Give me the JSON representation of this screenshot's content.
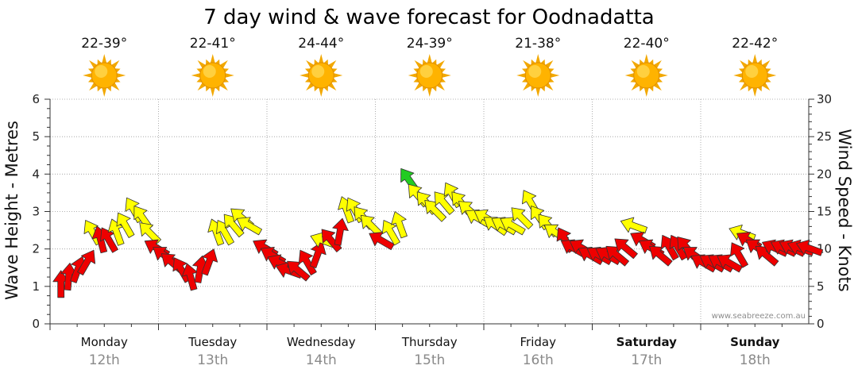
{
  "chart_data": {
    "type": "scatter",
    "title": "7 day wind & wave forecast for Oodnadatta",
    "y_left": {
      "label": "Wave Height - Metres",
      "ticks": [
        "0",
        "1",
        "2",
        "3",
        "4",
        "5",
        "6"
      ],
      "range": [
        0,
        6
      ]
    },
    "y_right": {
      "label": "Wind Speed - Knots",
      "ticks": [
        "0",
        "5",
        "10",
        "15",
        "20",
        "25",
        "30"
      ],
      "range": [
        0,
        30
      ]
    },
    "grid": true,
    "days": [
      {
        "name": "Monday",
        "date": "12th",
        "temp": "22-39°",
        "weather": "sunny-icon",
        "bold": false
      },
      {
        "name": "Tuesday",
        "date": "13th",
        "temp": "22-41°",
        "weather": "sunny-icon",
        "bold": false
      },
      {
        "name": "Wednesday",
        "date": "14th",
        "temp": "24-44°",
        "weather": "sunny-icon",
        "bold": false
      },
      {
        "name": "Thursday",
        "date": "15th",
        "temp": "24-39°",
        "weather": "sunny-icon",
        "bold": false
      },
      {
        "name": "Friday",
        "date": "16th",
        "temp": "21-38°",
        "weather": "sunny-icon",
        "bold": false
      },
      {
        "name": "Saturday",
        "date": "17th",
        "temp": "22-40°",
        "weather": "sunny-icon",
        "bold": true
      },
      {
        "name": "Sunday",
        "date": "18th",
        "temp": "22-42°",
        "weather": "sunny-icon",
        "bold": true
      }
    ],
    "wind_series": {
      "name": "Wind speed (knots) and direction (arrow bearing, degrees)",
      "x_unit": "days from Monday 00:00",
      "colors": {
        "strong": "#ee0000",
        "moderate": "#ffff00",
        "light": "#22cc22"
      },
      "points": [
        [
          0.1,
          5,
          0,
          "strong"
        ],
        [
          0.17,
          6,
          5,
          "strong"
        ],
        [
          0.25,
          7,
          20,
          "strong"
        ],
        [
          0.33,
          8,
          30,
          "strong"
        ],
        [
          0.4,
          12,
          330,
          "moderate"
        ],
        [
          0.47,
          11,
          345,
          "strong"
        ],
        [
          0.55,
          11,
          330,
          "strong"
        ],
        [
          0.62,
          12,
          340,
          "moderate"
        ],
        [
          0.7,
          13,
          330,
          "moderate"
        ],
        [
          0.78,
          15,
          330,
          "moderate"
        ],
        [
          0.86,
          14,
          325,
          "moderate"
        ],
        [
          0.93,
          12,
          315,
          "moderate"
        ],
        [
          1.0,
          10,
          300,
          "strong"
        ],
        [
          1.07,
          9,
          305,
          "strong"
        ],
        [
          1.14,
          8,
          310,
          "strong"
        ],
        [
          1.22,
          7,
          330,
          "strong"
        ],
        [
          1.3,
          6,
          345,
          "strong"
        ],
        [
          1.38,
          7,
          10,
          "strong"
        ],
        [
          1.46,
          8,
          20,
          "strong"
        ],
        [
          1.54,
          12,
          340,
          "moderate"
        ],
        [
          1.62,
          12,
          330,
          "moderate"
        ],
        [
          1.7,
          13,
          320,
          "moderate"
        ],
        [
          1.78,
          14,
          310,
          "moderate"
        ],
        [
          1.85,
          13,
          300,
          "moderate"
        ],
        [
          2.0,
          10,
          300,
          "strong"
        ],
        [
          2.07,
          9,
          300,
          "strong"
        ],
        [
          2.14,
          8,
          295,
          "strong"
        ],
        [
          2.22,
          7,
          290,
          "strong"
        ],
        [
          2.3,
          7,
          310,
          "strong"
        ],
        [
          2.38,
          8,
          330,
          "strong"
        ],
        [
          2.46,
          9,
          20,
          "strong"
        ],
        [
          2.54,
          11,
          290,
          "moderate"
        ],
        [
          2.6,
          11,
          320,
          "strong"
        ],
        [
          2.67,
          12,
          10,
          "strong"
        ],
        [
          2.74,
          15,
          340,
          "moderate"
        ],
        [
          2.82,
          15,
          330,
          "moderate"
        ],
        [
          2.9,
          14,
          320,
          "moderate"
        ],
        [
          2.97,
          13,
          315,
          "moderate"
        ],
        [
          3.07,
          11,
          300,
          "strong"
        ],
        [
          3.15,
          12,
          330,
          "moderate"
        ],
        [
          3.23,
          13,
          340,
          "moderate"
        ],
        [
          3.32,
          19,
          325,
          "light"
        ],
        [
          3.4,
          17,
          320,
          "moderate"
        ],
        [
          3.48,
          16,
          320,
          "moderate"
        ],
        [
          3.56,
          15,
          315,
          "moderate"
        ],
        [
          3.64,
          16,
          320,
          "moderate"
        ],
        [
          3.72,
          17,
          330,
          "moderate"
        ],
        [
          3.8,
          16,
          320,
          "moderate"
        ],
        [
          3.88,
          15,
          310,
          "moderate"
        ],
        [
          3.96,
          14,
          300,
          "moderate"
        ],
        [
          4.04,
          14,
          300,
          "moderate"
        ],
        [
          4.12,
          13,
          305,
          "moderate"
        ],
        [
          4.2,
          13,
          300,
          "moderate"
        ],
        [
          4.28,
          13,
          300,
          "moderate"
        ],
        [
          4.36,
          14,
          315,
          "moderate"
        ],
        [
          4.44,
          16,
          330,
          "moderate"
        ],
        [
          4.52,
          14,
          325,
          "moderate"
        ],
        [
          4.6,
          13,
          320,
          "moderate"
        ],
        [
          4.68,
          12,
          305,
          "moderate"
        ],
        [
          4.76,
          11,
          330,
          "strong"
        ],
        [
          4.84,
          10,
          300,
          "strong"
        ],
        [
          4.92,
          10,
          300,
          "strong"
        ],
        [
          5.0,
          9,
          300,
          "strong"
        ],
        [
          5.08,
          9,
          300,
          "strong"
        ],
        [
          5.16,
          9,
          300,
          "strong"
        ],
        [
          5.24,
          9,
          310,
          "strong"
        ],
        [
          5.32,
          10,
          310,
          "strong"
        ],
        [
          5.4,
          13,
          290,
          "moderate"
        ],
        [
          5.48,
          11,
          300,
          "strong"
        ],
        [
          5.56,
          10,
          300,
          "strong"
        ],
        [
          5.64,
          9,
          310,
          "strong"
        ],
        [
          5.72,
          10,
          330,
          "strong"
        ],
        [
          5.8,
          10,
          330,
          "strong"
        ],
        [
          5.88,
          10,
          320,
          "strong"
        ],
        [
          5.96,
          9,
          305,
          "strong"
        ],
        [
          6.04,
          8,
          300,
          "strong"
        ],
        [
          6.12,
          8,
          300,
          "strong"
        ],
        [
          6.2,
          8,
          300,
          "strong"
        ],
        [
          6.28,
          8,
          300,
          "strong"
        ],
        [
          6.36,
          9,
          330,
          "strong"
        ],
        [
          6.4,
          12,
          290,
          "moderate"
        ],
        [
          6.46,
          11,
          300,
          "strong"
        ],
        [
          6.54,
          10,
          305,
          "strong"
        ],
        [
          6.62,
          9,
          310,
          "strong"
        ],
        [
          6.7,
          10,
          295,
          "strong"
        ],
        [
          6.78,
          10,
          295,
          "strong"
        ],
        [
          6.86,
          10,
          295,
          "strong"
        ],
        [
          6.94,
          10,
          290,
          "strong"
        ],
        [
          7.02,
          10,
          290,
          "strong"
        ]
      ]
    },
    "watermark": "www.seabreeze.com.au"
  }
}
